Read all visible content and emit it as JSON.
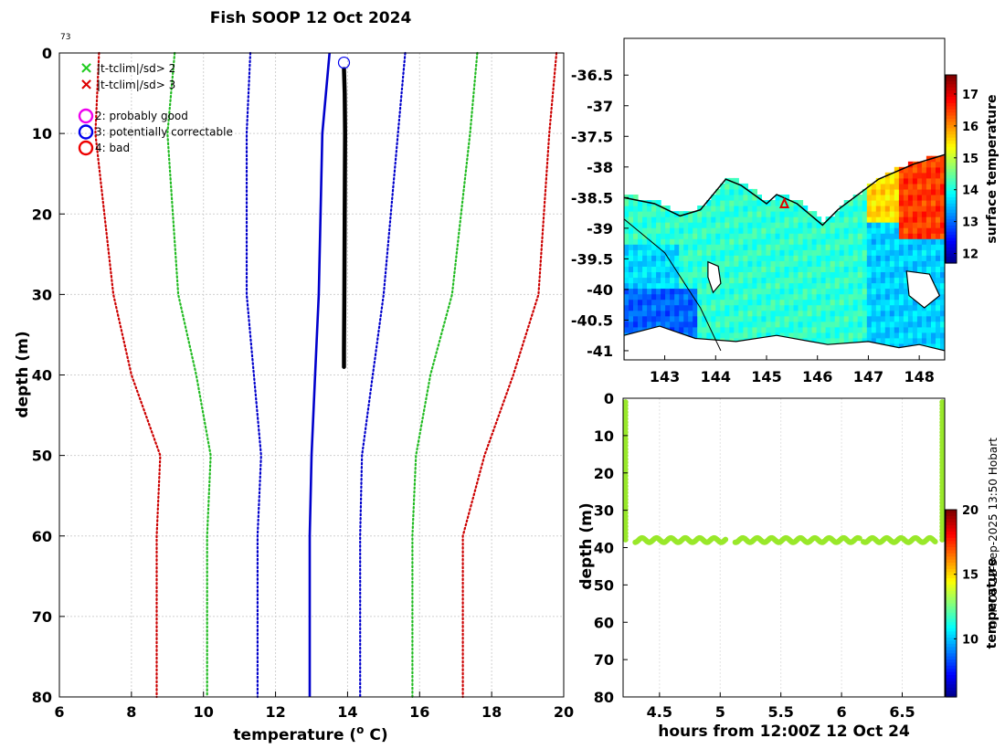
{
  "title": "Fish SOOP 12 Oct 2024",
  "profile_count": "73",
  "credit": "© IMOS 22-Sep-2025 13:50 Hobart",
  "colors": {
    "ok_cross": "#22dd22",
    "bad_cross": "#dd0000",
    "qc2": "#ee00ee",
    "qc3": "#0000ee",
    "qc4": "#ee0000",
    "clim_mean": "#0000cc",
    "sd2": "#22bb22",
    "sd3": "#0000cc",
    "sd4": "#cc0000",
    "profile": "#000000"
  },
  "legend": {
    "crosses": [
      {
        "symbol": "×",
        "color": "#22cc22",
        "label": "|t-tclim|/sd> 2"
      },
      {
        "symbol": "×",
        "color": "#dd0000",
        "label": "|t-tclim|/sd> 3"
      }
    ],
    "circles": [
      {
        "color": "#ee00ee",
        "label": "2: probably good"
      },
      {
        "color": "#0000ee",
        "label": "3: potentially correctable"
      },
      {
        "color": "#ee0000",
        "label": "4: bad"
      }
    ]
  },
  "chart_data": [
    {
      "type": "line",
      "name": "profile",
      "xlabel": "temperature (o C)",
      "ylabel": "depth (m)",
      "xlim": [
        6,
        20
      ],
      "ylim": [
        0,
        80
      ],
      "xticks": [
        6,
        8,
        10,
        12,
        14,
        16,
        18,
        20
      ],
      "yticks": [
        0,
        10,
        20,
        30,
        40,
        50,
        60,
        70,
        80
      ],
      "series": [
        {
          "name": "clim-4sd-low",
          "style": "dotted",
          "color": "#cc0000",
          "x": [
            7.1,
            7.0,
            7.5,
            8.0,
            8.8,
            8.7,
            8.7
          ],
          "y": [
            0,
            10,
            30,
            40,
            50,
            60,
            80
          ]
        },
        {
          "name": "clim-2sd-low",
          "style": "dotted",
          "color": "#22bb22",
          "x": [
            9.2,
            9.0,
            9.3,
            9.8,
            10.2,
            10.1,
            10.1
          ],
          "y": [
            0,
            10,
            30,
            40,
            50,
            60,
            80
          ]
        },
        {
          "name": "clim-1sd-low",
          "style": "dotted",
          "color": "#0000cc",
          "x": [
            11.3,
            11.2,
            11.2,
            11.4,
            11.6,
            11.5,
            11.5
          ],
          "y": [
            0,
            10,
            30,
            40,
            50,
            60,
            80
          ]
        },
        {
          "name": "clim-mean",
          "style": "solid",
          "color": "#0000cc",
          "x": [
            13.5,
            13.3,
            13.2,
            13.1,
            13.0,
            12.95,
            12.95
          ],
          "y": [
            0,
            10,
            30,
            40,
            50,
            60,
            80
          ]
        },
        {
          "name": "clim-1sd-high",
          "style": "dotted",
          "color": "#0000cc",
          "x": [
            15.6,
            15.4,
            15.0,
            14.7,
            14.4,
            14.35,
            14.35
          ],
          "y": [
            0,
            10,
            30,
            40,
            50,
            60,
            80
          ]
        },
        {
          "name": "clim-2sd-high",
          "style": "dotted",
          "color": "#22bb22",
          "x": [
            17.6,
            17.4,
            16.9,
            16.3,
            15.9,
            15.8,
            15.8
          ],
          "y": [
            0,
            10,
            30,
            40,
            50,
            60,
            80
          ]
        },
        {
          "name": "clim-4sd-high",
          "style": "dotted",
          "color": "#cc0000",
          "x": [
            19.8,
            19.6,
            19.3,
            18.6,
            17.8,
            17.2,
            17.2
          ],
          "y": [
            0,
            10,
            30,
            40,
            50,
            60,
            80
          ]
        },
        {
          "name": "observed",
          "style": "solid-thick",
          "color": "#000000",
          "x": [
            13.9,
            13.92,
            13.93,
            13.92,
            13.91,
            13.9,
            13.9
          ],
          "y": [
            2,
            5,
            10,
            20,
            30,
            37,
            39
          ]
        }
      ],
      "markers": [
        {
          "shape": "circle",
          "color": "#0000ee",
          "x": 13.9,
          "y": 1.2
        }
      ]
    },
    {
      "type": "heatmap",
      "name": "map",
      "xlim": [
        142.2,
        148.5
      ],
      "ylim": [
        -41.15,
        -35.9
      ],
      "xticks": [
        143,
        144,
        145,
        146,
        147,
        148
      ],
      "yticks": [
        -36.5,
        -37,
        -37.5,
        -38,
        -38.5,
        -39,
        -39.5,
        -40,
        -40.5,
        -41
      ],
      "colorbar": {
        "label": "surface temperature",
        "range": [
          11.7,
          17.6
        ],
        "ticks": [
          12,
          13,
          14,
          15,
          16,
          17
        ]
      },
      "marker": {
        "shape": "triangle",
        "color": "#dd0000",
        "lon": 145.35,
        "lat": -38.6
      }
    },
    {
      "type": "scatter",
      "name": "time-depth",
      "xlabel": "hours from 12:00Z 12 Oct 24",
      "ylabel": "depth (m)",
      "xlim": [
        4.2,
        6.85
      ],
      "ylim": [
        0,
        80
      ],
      "xticks": [
        4.5,
        5,
        5.5,
        6,
        6.5
      ],
      "yticks": [
        0,
        10,
        20,
        30,
        40,
        50,
        60,
        70,
        80
      ],
      "colorbar": {
        "label": "temperature",
        "range": [
          5.5,
          20
        ],
        "ticks": [
          10,
          15,
          20
        ]
      },
      "point_color": "#99e82a",
      "descent_1": {
        "x": 4.22,
        "y0": 1,
        "y1": 38
      },
      "tow": {
        "x0": 4.3,
        "x1": 6.78,
        "y": 38.0
      },
      "ascent_2": {
        "x": 6.83,
        "y0": 1,
        "y1": 38
      }
    }
  ]
}
